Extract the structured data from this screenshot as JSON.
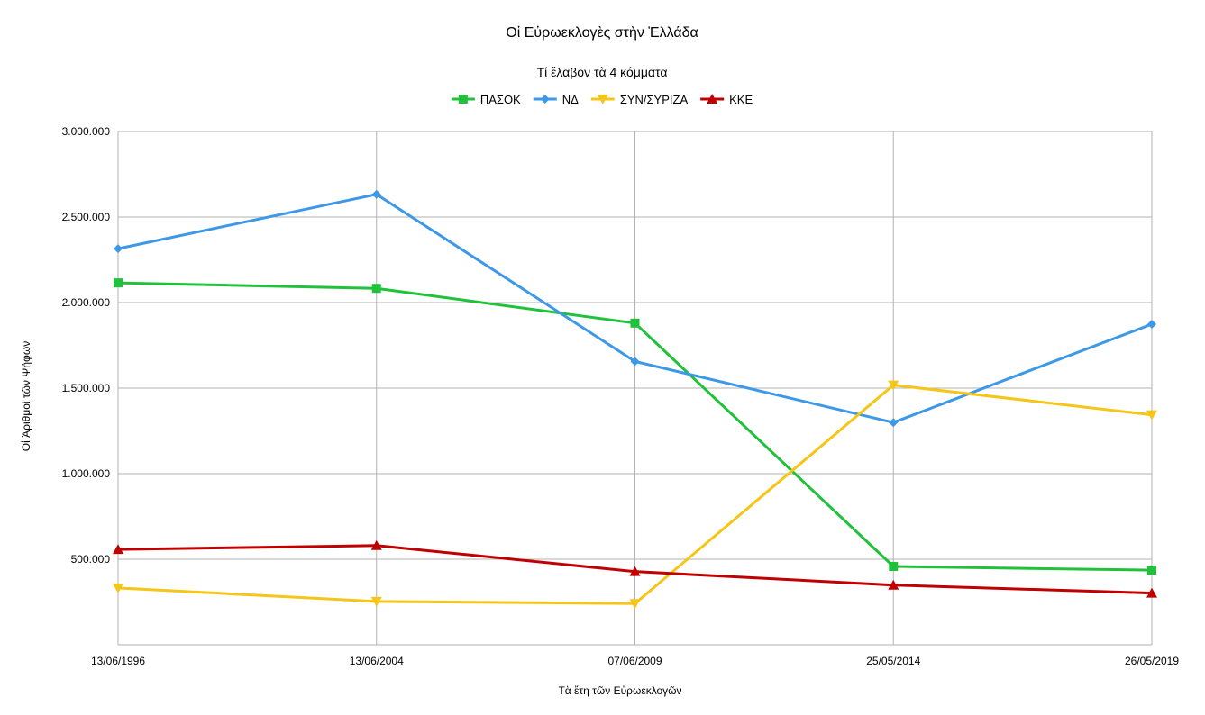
{
  "chart_data": {
    "type": "line",
    "title": "Οἱ Εὐρωεκλογὲς στὴν Ἑλλάδα",
    "subtitle": "Τί ἔλαβον τὰ 4 κόμματα",
    "xlabel": "Τὰ ἔτη τῶν Εὐρωεκλογῶν",
    "ylabel": "Οἱ Ἀριθμοὶ τῶν Ψήφων",
    "categories": [
      "13/06/1996",
      "13/06/2004",
      "07/06/2009",
      "25/05/2014",
      "26/05/2019"
    ],
    "ylim": [
      0,
      3000000
    ],
    "yticks": [
      500000,
      1000000,
      1500000,
      2000000,
      2500000,
      3000000
    ],
    "ytick_labels": [
      "500.000",
      "1.000.000",
      "1.500.000",
      "2.000.000",
      "2.500.000",
      "3.000.000"
    ],
    "grid": true,
    "legend_position": "top",
    "series": [
      {
        "name": "ΠΑΣΟΚ",
        "color": "#1fc23a",
        "marker": "square",
        "values": [
          2115000,
          2083000,
          1880000,
          458000,
          436000
        ]
      },
      {
        "name": "ΝΔ",
        "color": "#3e98e8",
        "marker": "diamond",
        "values": [
          2315000,
          2633000,
          1656000,
          1299000,
          1874000
        ]
      },
      {
        "name": "ΣΥΝ/ΣΥΡΙΖΑ",
        "color": "#f5c518",
        "marker": "triangle-down",
        "values": [
          332000,
          253000,
          241000,
          1518000,
          1344000
        ]
      },
      {
        "name": "ΚΚΕ",
        "color": "#c00000",
        "marker": "triangle-up",
        "values": [
          557000,
          580000,
          428000,
          349000,
          302000
        ]
      }
    ]
  }
}
